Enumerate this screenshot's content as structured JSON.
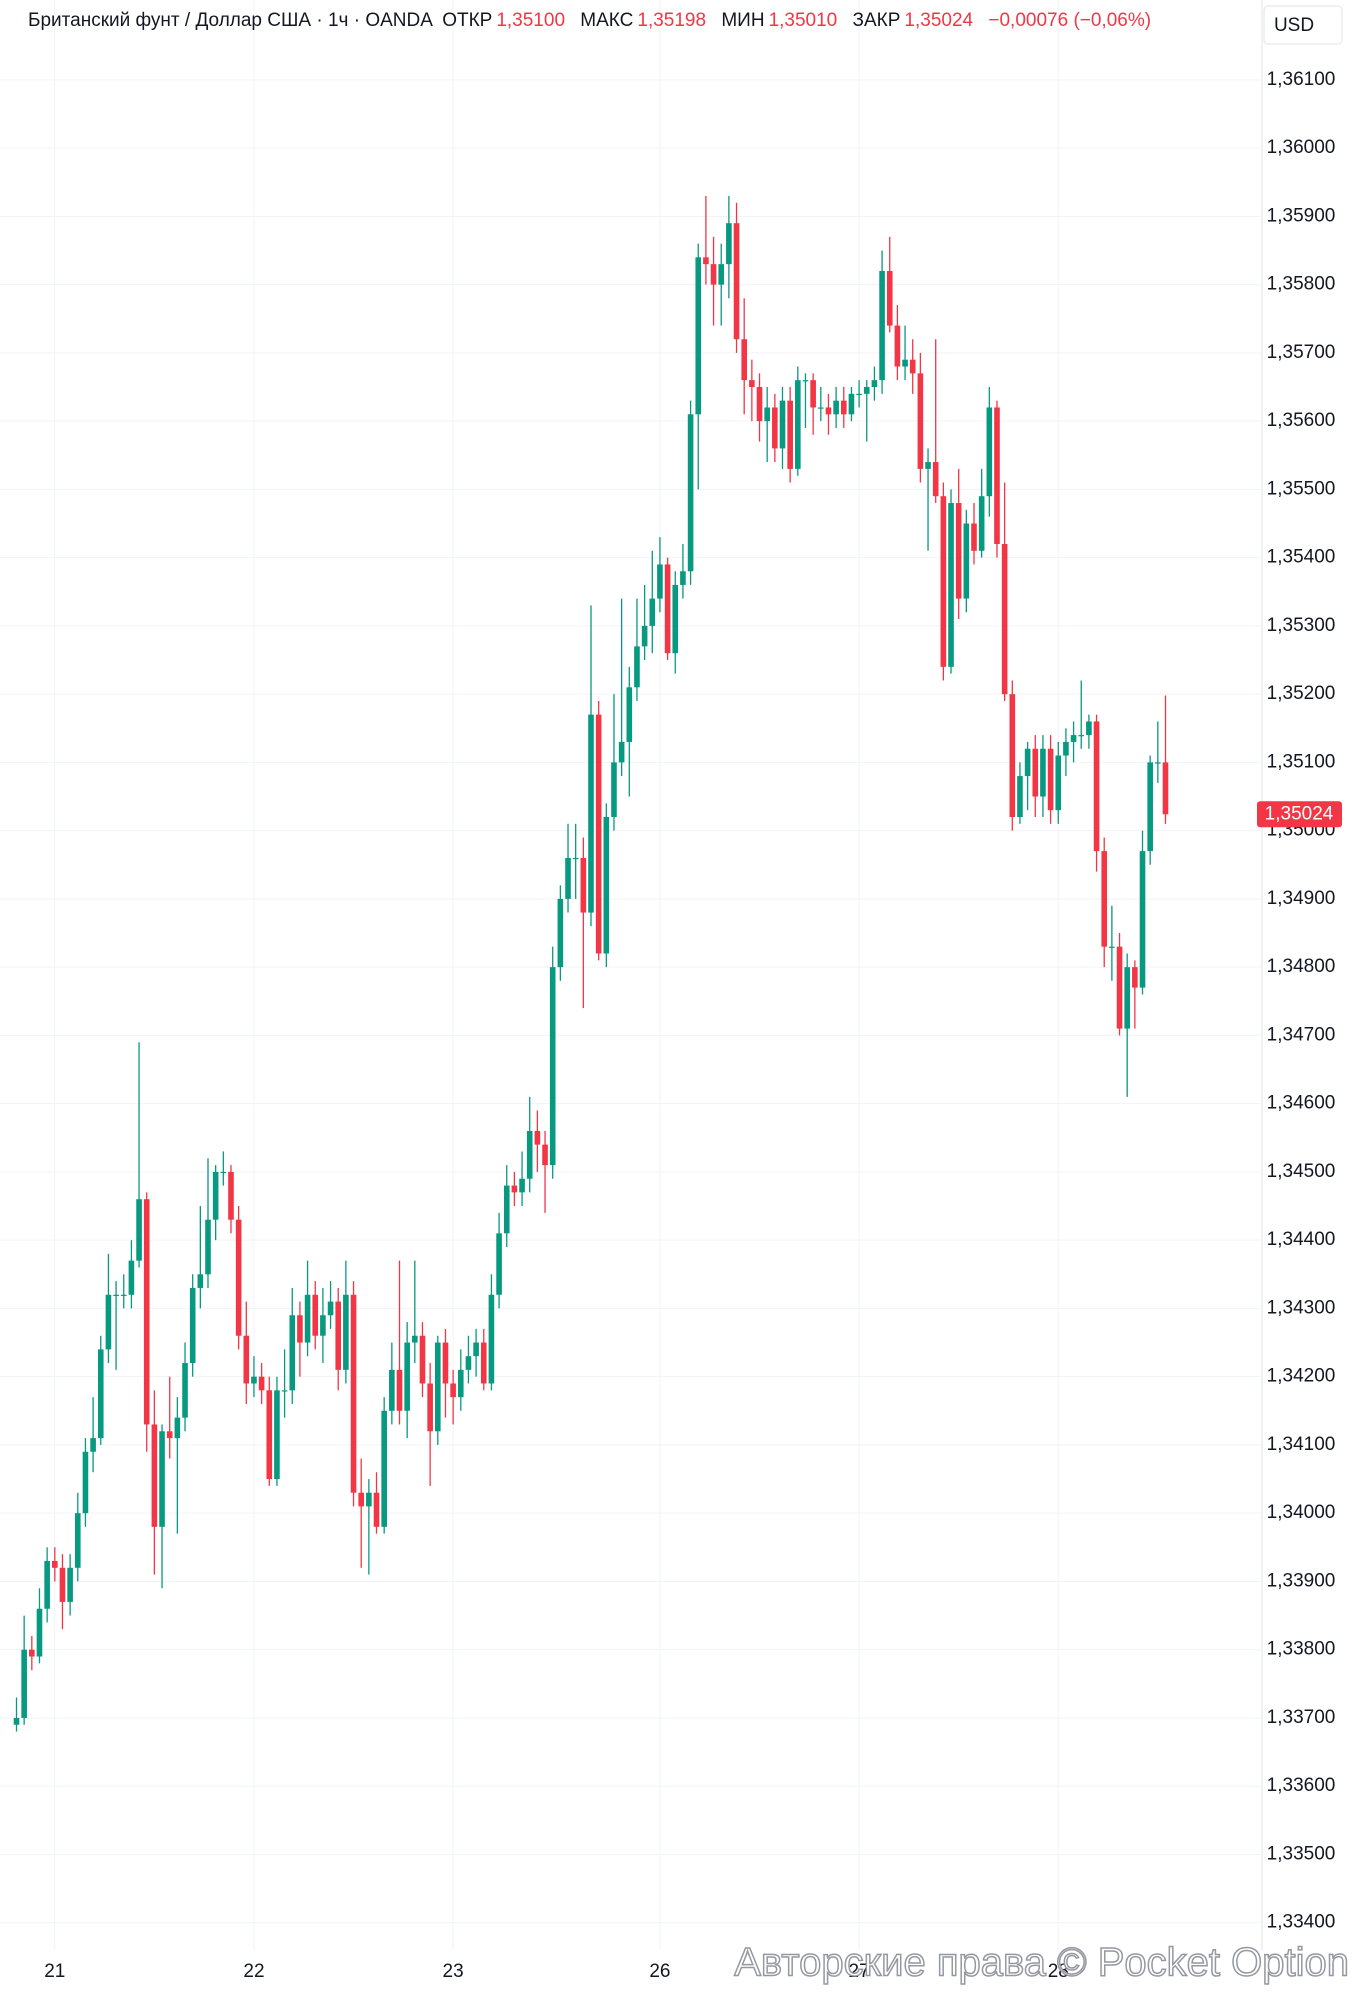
{
  "header": {
    "title": "Британский фунт / Доллар США · 1ч · OANDA",
    "open_label": "ОТКР",
    "open": "1,35100",
    "high_label": "МАКС",
    "high": "1,35198",
    "low_label": "МИН",
    "low": "1,35010",
    "close_label": "ЗАКР",
    "close": "1,35024",
    "change": "−0,00076 (−0,06%)",
    "currency": "USD"
  },
  "watermark": "Авторские права © Pocket Option",
  "chart_data": {
    "type": "candlestick",
    "up_color": "#089981",
    "down_color": "#f23645",
    "grid": true,
    "ylim": [
      1.3336,
      1.36217
    ],
    "yticks": [
      {
        "value": 1.334,
        "label": "1,33400"
      },
      {
        "value": 1.335,
        "label": "1,33500"
      },
      {
        "value": 1.336,
        "label": "1,33600"
      },
      {
        "value": 1.337,
        "label": "1,33700"
      },
      {
        "value": 1.338,
        "label": "1,33800"
      },
      {
        "value": 1.339,
        "label": "1,33900"
      },
      {
        "value": 1.34,
        "label": "1,34000"
      },
      {
        "value": 1.341,
        "label": "1,34100"
      },
      {
        "value": 1.342,
        "label": "1,34200"
      },
      {
        "value": 1.343,
        "label": "1,34300"
      },
      {
        "value": 1.344,
        "label": "1,34400"
      },
      {
        "value": 1.345,
        "label": "1,34500"
      },
      {
        "value": 1.346,
        "label": "1,34600"
      },
      {
        "value": 1.347,
        "label": "1,34700"
      },
      {
        "value": 1.348,
        "label": "1,34800"
      },
      {
        "value": 1.349,
        "label": "1,34900"
      },
      {
        "value": 1.35,
        "label": "1,35000"
      },
      {
        "value": 1.351,
        "label": "1,35100"
      },
      {
        "value": 1.352,
        "label": "1,35200"
      },
      {
        "value": 1.353,
        "label": "1,35300"
      },
      {
        "value": 1.354,
        "label": "1,35400"
      },
      {
        "value": 1.355,
        "label": "1,35500"
      },
      {
        "value": 1.356,
        "label": "1,35600"
      },
      {
        "value": 1.357,
        "label": "1,35700"
      },
      {
        "value": 1.358,
        "label": "1,35800"
      },
      {
        "value": 1.359,
        "label": "1,35900"
      },
      {
        "value": 1.36,
        "label": "1,36000"
      },
      {
        "value": 1.361,
        "label": "1,36100"
      }
    ],
    "xticks": [
      {
        "value": 5,
        "label": "21"
      },
      {
        "value": 31,
        "label": "22"
      },
      {
        "value": 57,
        "label": "23"
      },
      {
        "value": 84,
        "label": "26"
      },
      {
        "value": 110,
        "label": "27"
      },
      {
        "value": 136,
        "label": "28"
      }
    ],
    "last_price": {
      "value": 1.35024,
      "label": "1,35024"
    },
    "candles": [
      [
        1.3369,
        1.3373,
        1.3368,
        1.337
      ],
      [
        1.337,
        1.3385,
        1.3369,
        1.338
      ],
      [
        1.338,
        1.3382,
        1.3377,
        1.3379
      ],
      [
        1.3379,
        1.3389,
        1.3378,
        1.3386
      ],
      [
        1.3386,
        1.3395,
        1.3384,
        1.3393
      ],
      [
        1.3393,
        1.3395,
        1.339,
        1.3392
      ],
      [
        1.3392,
        1.3394,
        1.3383,
        1.3387
      ],
      [
        1.3387,
        1.3394,
        1.3385,
        1.3392
      ],
      [
        1.3392,
        1.3403,
        1.339,
        1.34
      ],
      [
        1.34,
        1.3411,
        1.3398,
        1.3409
      ],
      [
        1.3409,
        1.3417,
        1.3406,
        1.3411
      ],
      [
        1.3411,
        1.3426,
        1.341,
        1.3424
      ],
      [
        1.3424,
        1.3438,
        1.3422,
        1.3432
      ],
      [
        1.3432,
        1.3434,
        1.3421,
        1.3432
      ],
      [
        1.3432,
        1.3435,
        1.343,
        1.3432
      ],
      [
        1.3432,
        1.344,
        1.343,
        1.3437
      ],
      [
        1.3437,
        1.3469,
        1.3436,
        1.3446
      ],
      [
        1.3446,
        1.3447,
        1.3409,
        1.3413
      ],
      [
        1.3413,
        1.3418,
        1.3391,
        1.3398
      ],
      [
        1.3398,
        1.3413,
        1.3389,
        1.3412
      ],
      [
        1.3412,
        1.342,
        1.3408,
        1.3411
      ],
      [
        1.3411,
        1.3417,
        1.3397,
        1.3414
      ],
      [
        1.3414,
        1.3425,
        1.3412,
        1.3422
      ],
      [
        1.3422,
        1.3435,
        1.342,
        1.3433
      ],
      [
        1.3433,
        1.3445,
        1.343,
        1.3435
      ],
      [
        1.3435,
        1.3452,
        1.3433,
        1.3443
      ],
      [
        1.3443,
        1.3451,
        1.344,
        1.345
      ],
      [
        1.345,
        1.3453,
        1.3448,
        1.345
      ],
      [
        1.345,
        1.3451,
        1.3441,
        1.3443
      ],
      [
        1.3443,
        1.3445,
        1.3424,
        1.3426
      ],
      [
        1.3426,
        1.3431,
        1.3416,
        1.3419
      ],
      [
        1.3419,
        1.3423,
        1.3417,
        1.342
      ],
      [
        1.342,
        1.3422,
        1.3416,
        1.3418
      ],
      [
        1.3418,
        1.342,
        1.3404,
        1.3405
      ],
      [
        1.3405,
        1.342,
        1.3404,
        1.3418
      ],
      [
        1.3418,
        1.3424,
        1.3414,
        1.3418
      ],
      [
        1.3418,
        1.3433,
        1.3416,
        1.3429
      ],
      [
        1.3429,
        1.3431,
        1.342,
        1.3425
      ],
      [
        1.3425,
        1.3437,
        1.3423,
        1.3432
      ],
      [
        1.3432,
        1.3434,
        1.3424,
        1.3426
      ],
      [
        1.3426,
        1.3433,
        1.3422,
        1.3429
      ],
      [
        1.3429,
        1.3434,
        1.3427,
        1.3431
      ],
      [
        1.3431,
        1.3433,
        1.3418,
        1.3421
      ],
      [
        1.3421,
        1.3437,
        1.3419,
        1.3432
      ],
      [
        1.3432,
        1.3434,
        1.3401,
        1.3403
      ],
      [
        1.3403,
        1.3408,
        1.3392,
        1.3401
      ],
      [
        1.3401,
        1.3405,
        1.3391,
        1.3403
      ],
      [
        1.3403,
        1.3406,
        1.3397,
        1.3398
      ],
      [
        1.3398,
        1.3417,
        1.3397,
        1.3415
      ],
      [
        1.3415,
        1.3425,
        1.3413,
        1.3421
      ],
      [
        1.3421,
        1.3437,
        1.3413,
        1.3415
      ],
      [
        1.3415,
        1.3428,
        1.3411,
        1.3425
      ],
      [
        1.3425,
        1.3437,
        1.3422,
        1.3426
      ],
      [
        1.3426,
        1.3428,
        1.3417,
        1.3419
      ],
      [
        1.3419,
        1.3422,
        1.3404,
        1.3412
      ],
      [
        1.3412,
        1.3426,
        1.341,
        1.3425
      ],
      [
        1.3425,
        1.3427,
        1.3414,
        1.3419
      ],
      [
        1.3419,
        1.3421,
        1.3413,
        1.3417
      ],
      [
        1.3417,
        1.3424,
        1.3415,
        1.3421
      ],
      [
        1.3421,
        1.3426,
        1.3419,
        1.3423
      ],
      [
        1.3423,
        1.3427,
        1.342,
        1.3425
      ],
      [
        1.3425,
        1.3427,
        1.3418,
        1.3419
      ],
      [
        1.3419,
        1.3435,
        1.3418,
        1.3432
      ],
      [
        1.3432,
        1.3444,
        1.343,
        1.3441
      ],
      [
        1.3441,
        1.3451,
        1.3439,
        1.3448
      ],
      [
        1.3448,
        1.345,
        1.3445,
        1.3447
      ],
      [
        1.3447,
        1.3453,
        1.3445,
        1.3449
      ],
      [
        1.3449,
        1.3461,
        1.3447,
        1.3456
      ],
      [
        1.3456,
        1.3459,
        1.345,
        1.3454
      ],
      [
        1.3454,
        1.3456,
        1.3444,
        1.3451
      ],
      [
        1.3451,
        1.3483,
        1.3449,
        1.348
      ],
      [
        1.348,
        1.3492,
        1.3478,
        1.349
      ],
      [
        1.349,
        1.3501,
        1.3488,
        1.3496
      ],
      [
        1.3496,
        1.3501,
        1.349,
        1.3496
      ],
      [
        1.3496,
        1.3499,
        1.3474,
        1.3488
      ],
      [
        1.3488,
        1.3533,
        1.3486,
        1.3517
      ],
      [
        1.3517,
        1.3519,
        1.3481,
        1.3482
      ],
      [
        1.3482,
        1.3504,
        1.348,
        1.3502
      ],
      [
        1.3502,
        1.352,
        1.35,
        1.351
      ],
      [
        1.351,
        1.3534,
        1.3508,
        1.3513
      ],
      [
        1.3513,
        1.3524,
        1.3505,
        1.3521
      ],
      [
        1.3521,
        1.3534,
        1.3519,
        1.3527
      ],
      [
        1.3527,
        1.3536,
        1.3525,
        1.353
      ],
      [
        1.353,
        1.3541,
        1.3526,
        1.3534
      ],
      [
        1.3534,
        1.3543,
        1.3532,
        1.3539
      ],
      [
        1.3539,
        1.354,
        1.3525,
        1.3526
      ],
      [
        1.3526,
        1.3538,
        1.3523,
        1.3536
      ],
      [
        1.3536,
        1.3542,
        1.3534,
        1.3538
      ],
      [
        1.3538,
        1.3563,
        1.3536,
        1.3561
      ],
      [
        1.3561,
        1.3586,
        1.355,
        1.3584
      ],
      [
        1.3584,
        1.3593,
        1.358,
        1.3583
      ],
      [
        1.3583,
        1.3587,
        1.3574,
        1.358
      ],
      [
        1.358,
        1.3586,
        1.3574,
        1.3583
      ],
      [
        1.3583,
        1.3593,
        1.3578,
        1.3589
      ],
      [
        1.3589,
        1.3592,
        1.357,
        1.3572
      ],
      [
        1.3572,
        1.3578,
        1.3561,
        1.3566
      ],
      [
        1.3566,
        1.3569,
        1.356,
        1.3565
      ],
      [
        1.3565,
        1.3567,
        1.3557,
        1.356
      ],
      [
        1.356,
        1.3565,
        1.3554,
        1.3562
      ],
      [
        1.3562,
        1.3564,
        1.3554,
        1.3556
      ],
      [
        1.3556,
        1.3565,
        1.3553,
        1.3563
      ],
      [
        1.3563,
        1.3565,
        1.3551,
        1.3553
      ],
      [
        1.3553,
        1.3568,
        1.3552,
        1.3566
      ],
      [
        1.3566,
        1.3567,
        1.3559,
        1.3566
      ],
      [
        1.3566,
        1.3567,
        1.3558,
        1.3562
      ],
      [
        1.3562,
        1.3565,
        1.356,
        1.3562
      ],
      [
        1.3562,
        1.3564,
        1.3558,
        1.3561
      ],
      [
        1.3561,
        1.3565,
        1.3559,
        1.3563
      ],
      [
        1.3563,
        1.3565,
        1.3559,
        1.3561
      ],
      [
        1.3561,
        1.3565,
        1.356,
        1.3564
      ],
      [
        1.3564,
        1.3566,
        1.3562,
        1.3564
      ],
      [
        1.3564,
        1.3566,
        1.3557,
        1.3565
      ],
      [
        1.3565,
        1.3568,
        1.3563,
        1.3566
      ],
      [
        1.3566,
        1.3585,
        1.3564,
        1.3582
      ],
      [
        1.3582,
        1.3587,
        1.3573,
        1.3574
      ],
      [
        1.3574,
        1.3577,
        1.3566,
        1.3568
      ],
      [
        1.3568,
        1.3574,
        1.3566,
        1.3569
      ],
      [
        1.3569,
        1.3572,
        1.3564,
        1.3567
      ],
      [
        1.3567,
        1.357,
        1.3551,
        1.3553
      ],
      [
        1.3553,
        1.3556,
        1.3541,
        1.3554
      ],
      [
        1.3554,
        1.3572,
        1.3548,
        1.3549
      ],
      [
        1.3549,
        1.3551,
        1.3522,
        1.3524
      ],
      [
        1.3524,
        1.355,
        1.3523,
        1.3548
      ],
      [
        1.3548,
        1.3553,
        1.3531,
        1.3534
      ],
      [
        1.3534,
        1.3547,
        1.3532,
        1.3545
      ],
      [
        1.3545,
        1.3548,
        1.3539,
        1.3541
      ],
      [
        1.3541,
        1.3553,
        1.354,
        1.3549
      ],
      [
        1.3549,
        1.3565,
        1.3546,
        1.3562
      ],
      [
        1.3562,
        1.3563,
        1.354,
        1.3542
      ],
      [
        1.3542,
        1.3551,
        1.3519,
        1.352
      ],
      [
        1.352,
        1.3522,
        1.35,
        1.3502
      ],
      [
        1.3502,
        1.351,
        1.3501,
        1.3508
      ],
      [
        1.3508,
        1.3513,
        1.3503,
        1.3512
      ],
      [
        1.3512,
        1.3514,
        1.3502,
        1.3505
      ],
      [
        1.3505,
        1.3514,
        1.3502,
        1.3512
      ],
      [
        1.3512,
        1.3514,
        1.3501,
        1.3503
      ],
      [
        1.3503,
        1.3513,
        1.3501,
        1.3511
      ],
      [
        1.3511,
        1.3515,
        1.3508,
        1.3513
      ],
      [
        1.3513,
        1.3516,
        1.351,
        1.3514
      ],
      [
        1.3514,
        1.3522,
        1.3512,
        1.3514
      ],
      [
        1.3514,
        1.3517,
        1.3512,
        1.3516
      ],
      [
        1.3516,
        1.3517,
        1.3494,
        1.3497
      ],
      [
        1.3497,
        1.3499,
        1.348,
        1.3483
      ],
      [
        1.3483,
        1.3489,
        1.3478,
        1.3483
      ],
      [
        1.3483,
        1.3485,
        1.347,
        1.3471
      ],
      [
        1.3471,
        1.3482,
        1.3461,
        1.348
      ],
      [
        1.348,
        1.3481,
        1.3471,
        1.3477
      ],
      [
        1.3477,
        1.35,
        1.3476,
        1.3497
      ],
      [
        1.3497,
        1.3511,
        1.3495,
        1.351
      ],
      [
        1.351,
        1.3516,
        1.3507,
        1.351
      ],
      [
        1.351,
        1.35198,
        1.3501,
        1.35024
      ]
    ]
  }
}
